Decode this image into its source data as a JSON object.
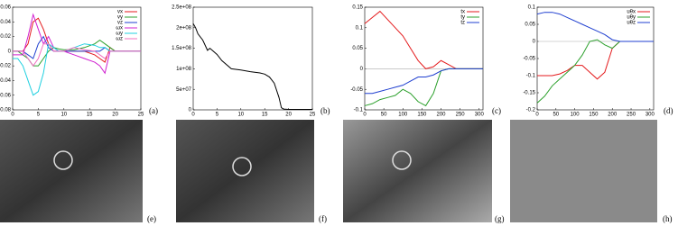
{
  "chart_data": [
    {
      "type": "line",
      "xlim": [
        0,
        25
      ],
      "xticks": [
        0,
        5,
        10,
        15,
        20,
        25
      ],
      "ylim": [
        -0.08,
        0.06
      ],
      "yticks": [
        -0.08,
        -0.06,
        -0.04,
        -0.02,
        0,
        0.02,
        0.04,
        0.06
      ],
      "legend": "top-right",
      "zero_line": false,
      "x": [
        0,
        1,
        2,
        3,
        4,
        5,
        6,
        7,
        8,
        9,
        10,
        12,
        14,
        16,
        17,
        18,
        19,
        20,
        25
      ],
      "series": [
        {
          "name": "vx",
          "color": "#e41a1c",
          "values": [
            0,
            0,
            0,
            0.01,
            0.04,
            0.045,
            0.03,
            0.01,
            0,
            0,
            0,
            0,
            0,
            -0.005,
            -0.01,
            -0.015,
            0.005,
            0,
            0
          ]
        },
        {
          "name": "vy",
          "color": "#2ca02c",
          "values": [
            0,
            0,
            -0.005,
            -0.01,
            -0.02,
            -0.02,
            -0.01,
            0,
            0.005,
            0.003,
            0.002,
            0.002,
            0.005,
            0.01,
            0.015,
            0.01,
            0.005,
            0,
            0
          ]
        },
        {
          "name": "vz",
          "color": "#1f3fd0",
          "values": [
            0,
            0,
            0,
            -0.005,
            -0.01,
            0.01,
            0.02,
            0.005,
            0,
            0,
            0,
            0,
            0,
            0,
            0,
            0.005,
            0,
            0,
            0
          ]
        },
        {
          "name": "ωx",
          "color": "#d020d0",
          "values": [
            -0.005,
            -0.005,
            -0.005,
            0.02,
            0.05,
            0.03,
            0.01,
            0.02,
            0.005,
            0,
            0,
            -0.005,
            -0.01,
            -0.015,
            -0.02,
            -0.03,
            0,
            0,
            0
          ]
        },
        {
          "name": "ωy",
          "color": "#20d0e0",
          "values": [
            -0.01,
            -0.01,
            -0.02,
            -0.04,
            -0.06,
            -0.055,
            -0.03,
            0.01,
            0.005,
            0,
            0,
            0.005,
            0.01,
            0.008,
            0.005,
            0.005,
            0,
            0,
            0
          ]
        },
        {
          "name": "ωz",
          "color": "#f070c0",
          "values": [
            0,
            0,
            0,
            -0.01,
            -0.02,
            -0.01,
            0.01,
            0.01,
            0,
            0,
            0,
            0.005,
            0.002,
            0,
            -0.005,
            -0.01,
            0,
            0,
            0
          ]
        }
      ]
    },
    {
      "type": "line",
      "xlim": [
        0,
        25
      ],
      "xticks": [
        0,
        5,
        10,
        15,
        20,
        25
      ],
      "ylim": [
        0,
        250000000
      ],
      "yticks": [
        0,
        {
          "value": 50000000,
          "label": "5e+07"
        },
        {
          "value": 100000000,
          "label": "1e+08"
        },
        {
          "value": 150000000,
          "label": "1.5e+08"
        },
        {
          "value": 200000000,
          "label": "2e+08"
        },
        {
          "value": 250000000,
          "label": "2.5e+08"
        }
      ],
      "zero_line": false,
      "x": [
        0,
        0.5,
        1,
        2,
        3,
        3.5,
        4,
        5,
        6,
        8,
        10,
        12,
        14,
        15,
        16,
        17,
        18,
        18.5,
        19,
        20,
        22,
        25
      ],
      "series": [
        {
          "color": "#000000",
          "values": [
            210000000,
            200000000,
            185000000,
            170000000,
            145000000,
            150000000,
            145000000,
            135000000,
            120000000,
            100000000,
            97000000,
            93000000,
            90000000,
            87000000,
            80000000,
            65000000,
            30000000,
            5000000,
            2000000,
            1000000,
            1000000,
            1000000
          ]
        }
      ]
    },
    {
      "type": "line",
      "xlim": [
        0,
        310
      ],
      "xticks": [
        0,
        50,
        100,
        150,
        200,
        250,
        300
      ],
      "ylim": [
        -0.1,
        0.15
      ],
      "yticks": [
        -0.1,
        -0.05,
        0,
        0.05,
        0.1,
        0.15
      ],
      "legend": "top-right",
      "zero_line": true,
      "x": [
        0,
        20,
        40,
        60,
        80,
        100,
        120,
        140,
        160,
        180,
        200,
        220,
        240,
        260,
        280,
        300,
        310
      ],
      "series": [
        {
          "name": "tx",
          "color": "#e41a1c",
          "values": [
            0.11,
            0.125,
            0.14,
            0.12,
            0.1,
            0.08,
            0.05,
            0.02,
            0,
            0.005,
            0.02,
            0.01,
            0,
            0,
            0,
            0,
            0
          ]
        },
        {
          "name": "ty",
          "color": "#2ca02c",
          "values": [
            -0.09,
            -0.085,
            -0.075,
            -0.07,
            -0.065,
            -0.05,
            -0.06,
            -0.08,
            -0.09,
            -0.06,
            -0.005,
            0,
            0,
            0,
            0,
            0,
            0
          ]
        },
        {
          "name": "tz",
          "color": "#1f3fd0",
          "values": [
            -0.06,
            -0.06,
            -0.055,
            -0.05,
            -0.045,
            -0.04,
            -0.03,
            -0.02,
            -0.02,
            -0.015,
            -0.005,
            0,
            0,
            0,
            0,
            0,
            0
          ]
        }
      ]
    },
    {
      "type": "line",
      "xlim": [
        0,
        310
      ],
      "xticks": [
        0,
        50,
        100,
        150,
        200,
        250,
        300
      ],
      "ylim": [
        -0.2,
        0.1
      ],
      "yticks": [
        -0.2,
        -0.15,
        -0.1,
        -0.05,
        0,
        0.05,
        0.1
      ],
      "legend": "top-right",
      "zero_line": true,
      "x": [
        0,
        20,
        40,
        60,
        80,
        100,
        120,
        140,
        160,
        180,
        200,
        220,
        240,
        260,
        280,
        300,
        310
      ],
      "series": [
        {
          "name": "uθx",
          "color": "#e41a1c",
          "values": [
            -0.1,
            -0.1,
            -0.1,
            -0.095,
            -0.085,
            -0.07,
            -0.07,
            -0.09,
            -0.11,
            -0.09,
            -0.02,
            0,
            0,
            0,
            0,
            0,
            0
          ]
        },
        {
          "name": "uθy",
          "color": "#2ca02c",
          "values": [
            -0.18,
            -0.16,
            -0.13,
            -0.11,
            -0.09,
            -0.07,
            -0.04,
            0,
            0.005,
            -0.01,
            -0.02,
            0,
            0,
            0,
            0,
            0,
            0
          ]
        },
        {
          "name": "uθz",
          "color": "#1f3fd0",
          "values": [
            0.08,
            0.085,
            0.085,
            0.08,
            0.07,
            0.06,
            0.05,
            0.04,
            0.03,
            0.02,
            0.005,
            0,
            0,
            0,
            0,
            0,
            0
          ]
        }
      ]
    }
  ],
  "panel_labels": [
    "(a)",
    "(b)",
    "(c)",
    "(d)",
    "(e)",
    "(f)",
    "(g)",
    "(h)"
  ]
}
